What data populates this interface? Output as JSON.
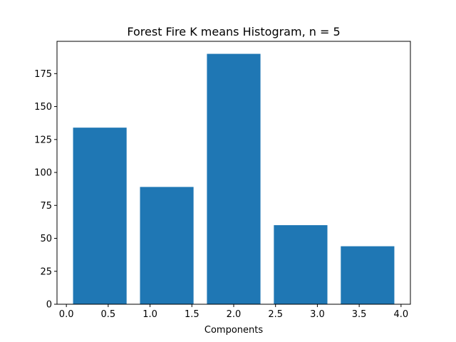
{
  "chart_data": {
    "type": "bar",
    "title": "Forest Fire K means Histogram, n = 5",
    "xlabel": "Components",
    "ylabel": "",
    "bar_color": "#1f77b4",
    "x": [
      0.4,
      1.2,
      2.0,
      2.8,
      3.6
    ],
    "bar_width": 0.64,
    "values": [
      134,
      89,
      190,
      60,
      44
    ],
    "xlim": [
      -0.112,
      4.112
    ],
    "ylim": [
      0,
      199.5
    ],
    "xticks": [
      0.0,
      0.5,
      1.0,
      1.5,
      2.0,
      2.5,
      3.0,
      3.5,
      4.0
    ],
    "xtick_labels": [
      "0.0",
      "0.5",
      "1.0",
      "1.5",
      "2.0",
      "2.5",
      "3.0",
      "3.5",
      "4.0"
    ],
    "yticks": [
      0,
      25,
      50,
      75,
      100,
      125,
      150,
      175
    ],
    "ytick_labels": [
      "0",
      "25",
      "50",
      "75",
      "100",
      "125",
      "150",
      "175"
    ],
    "grid": false,
    "legend": "none"
  }
}
